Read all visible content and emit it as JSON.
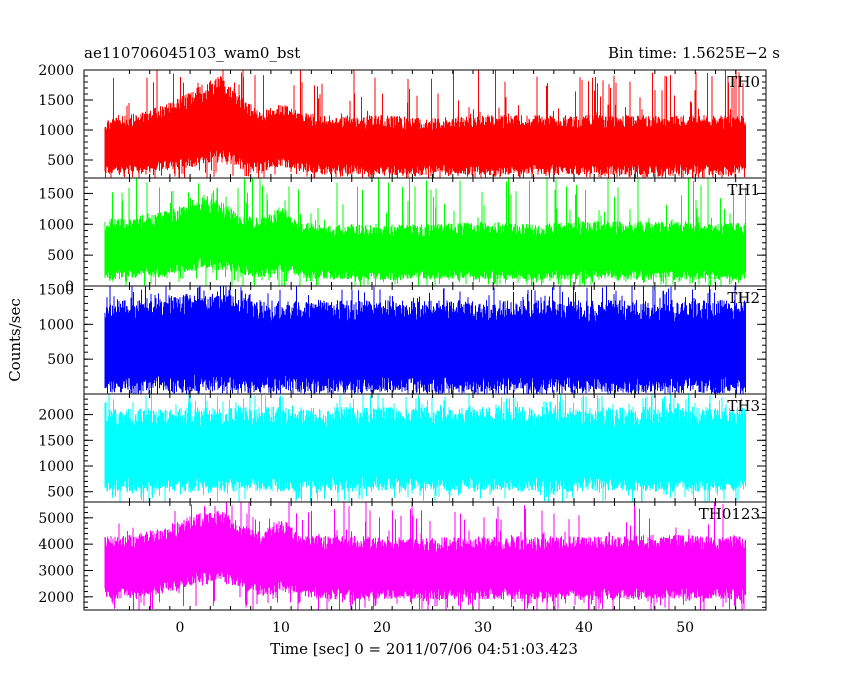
{
  "header": {
    "object_name": "ae110706045103_wam0_bst",
    "bin_time": "Bin time: 1.5625E−2 s"
  },
  "chart_data": {
    "type": "line",
    "title": "ae110706045103_wam0_bst",
    "subtitle": "Bin time: 1.5625E−2 s",
    "xlabel": "Time [sec] 0 = 2011/07/06 04:51:03.423",
    "ylabel": "Counts/sec",
    "xlim": [
      -9.5,
      58
    ],
    "xticks": [
      0,
      10,
      20,
      30,
      40,
      50
    ],
    "grid": false,
    "legend": "none",
    "panels": [
      {
        "name": "TH0",
        "color": "#ff0000",
        "ylim": [
          200,
          2000
        ],
        "yticks": [
          500,
          1000,
          1500,
          2000
        ],
        "data_x_range": [
          -7.5,
          56
        ],
        "envelope": {
          "x": [
            -7.5,
            -5,
            -2,
            0,
            2,
            4,
            6,
            8,
            10,
            12,
            15,
            20,
            25,
            30,
            35,
            40,
            45,
            50,
            53,
            56
          ],
          "high": [
            1200,
            1250,
            1400,
            1550,
            1750,
            1900,
            1600,
            1300,
            1450,
            1300,
            1250,
            1250,
            1200,
            1250,
            1250,
            1250,
            1250,
            1250,
            1250,
            1250
          ],
          "low": [
            250,
            250,
            300,
            350,
            400,
            450,
            350,
            300,
            400,
            300,
            260,
            250,
            250,
            250,
            250,
            250,
            250,
            250,
            250,
            250
          ]
        }
      },
      {
        "name": "TH1",
        "color": "#00ff00",
        "ylim": [
          0,
          1750
        ],
        "yticks": [
          0,
          500,
          1000,
          1500
        ],
        "data_x_range": [
          -7.5,
          56
        ],
        "envelope": {
          "x": [
            -7.5,
            -5,
            -2,
            0,
            2,
            4,
            6,
            8,
            10,
            12,
            15,
            20,
            25,
            30,
            35,
            40,
            45,
            50,
            53,
            56
          ],
          "high": [
            1100,
            1100,
            1200,
            1300,
            1450,
            1400,
            1150,
            1100,
            1300,
            1050,
            1000,
            1000,
            1000,
            1050,
            1000,
            1050,
            1050,
            1050,
            1000,
            1050
          ],
          "low": [
            100,
            120,
            150,
            200,
            250,
            250,
            180,
            120,
            220,
            150,
            100,
            100,
            100,
            100,
            100,
            100,
            100,
            100,
            100,
            100
          ]
        }
      },
      {
        "name": "TH2",
        "color": "#0000ff",
        "ylim": [
          0,
          1550
        ],
        "yticks": [
          500,
          1000,
          1500
        ],
        "data_x_range": [
          -7.5,
          56
        ],
        "envelope": {
          "x": [
            -7.5,
            0,
            4,
            8,
            15,
            25,
            35,
            45,
            56
          ],
          "high": [
            1350,
            1400,
            1450,
            1350,
            1350,
            1350,
            1350,
            1350,
            1350
          ],
          "low": [
            20,
            30,
            60,
            30,
            20,
            20,
            20,
            20,
            20
          ]
        }
      },
      {
        "name": "TH3",
        "color": "#00ffff",
        "ylim": [
          300,
          2400
        ],
        "yticks": [
          500,
          1000,
          1500,
          2000
        ],
        "data_x_range": [
          -7.5,
          56
        ],
        "envelope": {
          "x": [
            -7.5,
            0,
            4,
            8,
            15,
            25,
            35,
            45,
            56
          ],
          "high": [
            2100,
            2150,
            2150,
            2150,
            2150,
            2150,
            2150,
            2150,
            2150
          ],
          "low": [
            500,
            500,
            520,
            500,
            500,
            500,
            500,
            500,
            500
          ]
        }
      },
      {
        "name": "TH0123",
        "color": "#ff00ff",
        "ylim": [
          1500,
          5600
        ],
        "yticks": [
          2000,
          3000,
          4000,
          5000
        ],
        "data_x_range": [
          -7.5,
          56
        ],
        "envelope": {
          "x": [
            -7.5,
            -5,
            -2,
            0,
            2,
            4,
            6,
            8,
            10,
            12,
            15,
            20,
            25,
            30,
            35,
            40,
            45,
            50,
            53,
            56
          ],
          "high": [
            4300,
            4350,
            4600,
            4900,
            5200,
            5300,
            4800,
            4500,
            5000,
            4400,
            4300,
            4300,
            4250,
            4300,
            4300,
            4300,
            4350,
            4350,
            4300,
            4400
          ],
          "low": [
            1900,
            1950,
            2100,
            2300,
            2500,
            2600,
            2300,
            2000,
            2200,
            2000,
            1900,
            1900,
            1900,
            1900,
            1900,
            1900,
            1900,
            1900,
            1900,
            1900
          ]
        }
      }
    ]
  }
}
